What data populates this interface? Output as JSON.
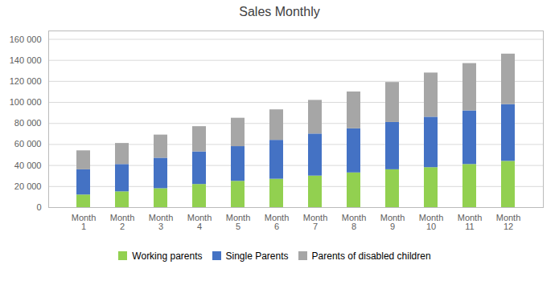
{
  "chart_data": {
    "type": "bar",
    "title": "Sales Monthly",
    "categories": [
      "Month\n1",
      "Month\n2",
      "Month\n3",
      "Month\n4",
      "Month\n5",
      "Month\n6",
      "Month\n7",
      "Month\n8",
      "Month\n9",
      "Month\n10",
      "Month\n11",
      "Month\n12"
    ],
    "series": [
      {
        "name": "Working parents",
        "color": "#92d050",
        "values": [
          12000,
          15000,
          18000,
          22000,
          25000,
          27000,
          30000,
          33000,
          36000,
          38000,
          41000,
          44000
        ]
      },
      {
        "name": "Single Parents",
        "color": "#4472c4",
        "values": [
          24000,
          26000,
          29000,
          31000,
          33000,
          37000,
          40000,
          42000,
          45000,
          48000,
          51000,
          54000
        ]
      },
      {
        "name": "Parents of disabled children",
        "color": "#a6a6a6",
        "values": [
          18000,
          20000,
          22000,
          24000,
          27000,
          29000,
          32000,
          35000,
          38000,
          42000,
          45000,
          48000
        ]
      }
    ],
    "stacked": true,
    "ylim": [
      0,
      168000
    ],
    "yticks": [
      0,
      {
        "value": 20000,
        "label": "20 000"
      },
      {
        "value": 40000,
        "label": "40 000"
      },
      {
        "value": 60000,
        "label": "60 000"
      },
      {
        "value": 80000,
        "label": "80 000"
      },
      {
        "value": 100000,
        "label": "100 000"
      },
      {
        "value": 120000,
        "label": "120 000"
      },
      {
        "value": 140000,
        "label": "140 000"
      },
      {
        "value": 160000,
        "label": "160 000"
      }
    ],
    "grid": true,
    "legend": "bottom"
  }
}
